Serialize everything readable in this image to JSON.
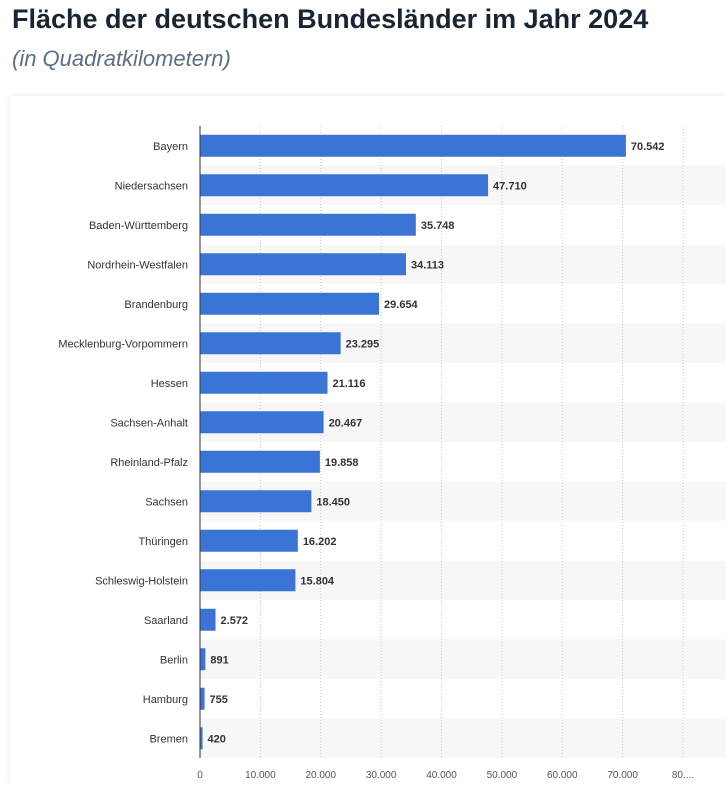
{
  "header": {
    "title": "Fläche der deutschen Bundesländer im Jahr 2024",
    "subtitle": "(in Quadratkilometern)"
  },
  "colors": {
    "bar": "#3a74d4",
    "stripe": "#f7f7f7",
    "grid": "#c8c8c8",
    "axis": "#333333"
  },
  "chart_data": {
    "type": "bar",
    "orientation": "horizontal",
    "title": "Fläche der deutschen Bundesländer im Jahr 2024",
    "subtitle": "(in Quadratkilometern)",
    "categories": [
      "Bayern",
      "Niedersachsen",
      "Baden-Württemberg",
      "Nordrhein-Westfalen",
      "Brandenburg",
      "Mecklenburg-Vorpommern",
      "Hessen",
      "Sachsen-Anhalt",
      "Rheinland-Pfalz",
      "Sachsen",
      "Thüringen",
      "Schleswig-Holstein",
      "Saarland",
      "Berlin",
      "Hamburg",
      "Bremen"
    ],
    "values": [
      70542,
      47710,
      35748,
      34113,
      29654,
      23295,
      21116,
      20467,
      19858,
      18450,
      16202,
      15804,
      2572,
      891,
      755,
      420
    ],
    "value_labels": [
      "70.542",
      "47.710",
      "35.748",
      "34.113",
      "29.654",
      "23.295",
      "21.116",
      "20.467",
      "19.858",
      "18.450",
      "16.202",
      "15.804",
      "2.572",
      "891",
      "755",
      "420"
    ],
    "xlim": [
      0,
      80000
    ],
    "xticks": [
      0,
      10000,
      20000,
      30000,
      40000,
      50000,
      60000,
      70000,
      80000
    ],
    "xtick_labels": [
      "0",
      "10.000",
      "20.000",
      "30.000",
      "40.000",
      "50.000",
      "60.000",
      "70.000",
      "80...."
    ],
    "grid": true,
    "xlabel": "",
    "ylabel": ""
  }
}
